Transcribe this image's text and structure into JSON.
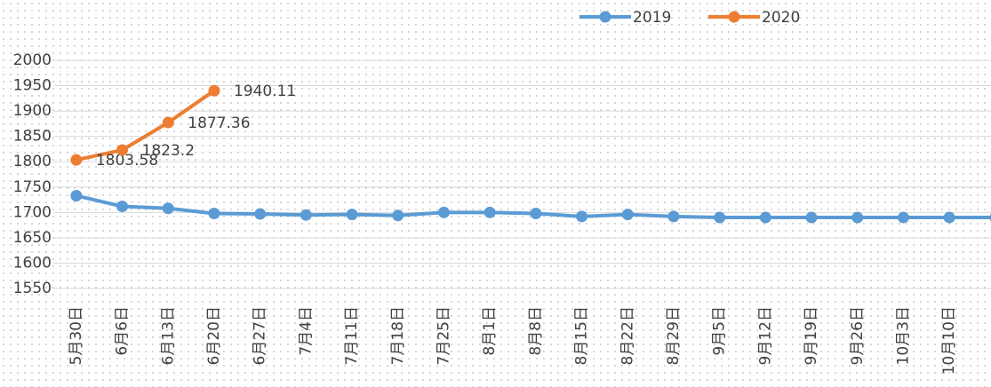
{
  "chart_data": {
    "type": "line",
    "categories": [
      "5月30日",
      "6月6日",
      "6月13日",
      "6月20日",
      "6月27日",
      "7月4日",
      "7月11日",
      "7月18日",
      "7月25日",
      "8月1日",
      "8月8日",
      "8月15日",
      "8月22日",
      "8月29日",
      "9月5日",
      "9月12日",
      "9月19日",
      "9月26日",
      "10月3日",
      "10月10日",
      null
    ],
    "series": [
      {
        "name": "2019",
        "color": "#5b9bd5",
        "values": [
          1733,
          1712,
          1708,
          1698,
          1697,
          1695,
          1696,
          1694,
          1700,
          1700,
          1698,
          1692,
          1696,
          1692,
          1690,
          1690,
          1690,
          1690,
          1690,
          1690,
          1690
        ]
      },
      {
        "name": "2020",
        "color": "#ed7d31",
        "values": [
          1803.58,
          1823.2,
          1877.36,
          1940.11,
          null,
          null,
          null,
          null,
          null,
          null,
          null,
          null,
          null,
          null,
          null,
          null,
          null,
          null,
          null,
          null,
          null
        ],
        "data_labels": true
      }
    ],
    "ylim": [
      1550,
      2000
    ],
    "yticks": [
      1550,
      1600,
      1650,
      1700,
      1750,
      1800,
      1850,
      1900,
      1950,
      2000
    ],
    "grid": true,
    "legend": "top"
  }
}
